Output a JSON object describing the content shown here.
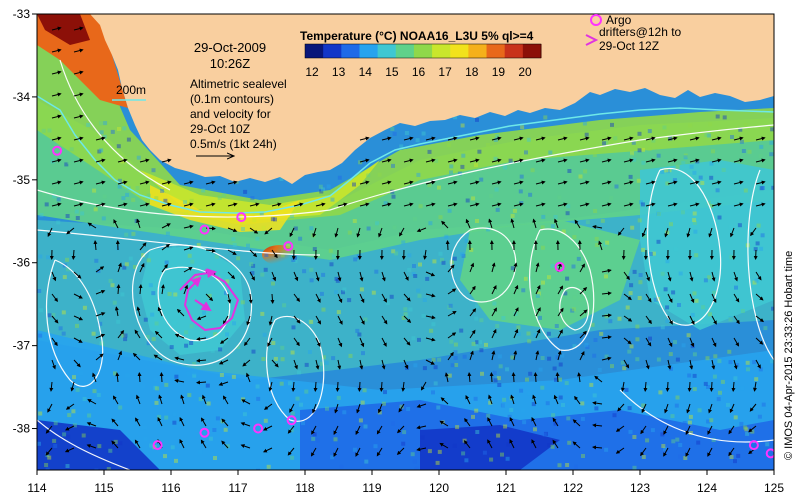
{
  "map": {
    "date": "29-Oct-2009",
    "time": "10:26Z",
    "colorbar": {
      "title": "Temperature (°C) NOAA16_L3U 5% ql>=4",
      "ticks": [
        "12",
        "13",
        "14",
        "15",
        "16",
        "17",
        "18",
        "19",
        "20"
      ],
      "colors": [
        "#08167a",
        "#1236c8",
        "#1f6ae8",
        "#27a3ee",
        "#3fc7d2",
        "#5fd18a",
        "#8fd84a",
        "#c9e62c",
        "#f2e21c",
        "#f5b01a",
        "#e8681a",
        "#c8321a",
        "#8c1008"
      ]
    },
    "altimetry_note": [
      "Altimetric sealevel",
      "(0.1m contours)",
      "and velocity for",
      "29-Oct 10Z",
      "0.5m/s (1kt 24h)"
    ],
    "isobath_label": "200m",
    "argo_label": "Argo",
    "drifter_note": [
      "drifters@12h to",
      "29-Oct 12Z"
    ],
    "credit": "© IMOS 04-Apr-2015 23:33:26 Hobart time",
    "x_ticks": [
      "114",
      "115",
      "116",
      "117",
      "118",
      "119",
      "120",
      "121",
      "122",
      "123",
      "124",
      "125"
    ],
    "y_ticks": [
      "-33",
      "-34",
      "-35",
      "-36",
      "-37",
      "-38"
    ],
    "colors": {
      "land": "#f9cf9f",
      "isobath": "#6ee8e8",
      "contour": "#ffffff",
      "argo": "#ff33ff",
      "drifter": "#e033e0",
      "arrow": "#000000"
    }
  },
  "chart_data": {
    "type": "heatmap",
    "title": "Temperature (°C) NOAA16_L3U 5% ql>=4",
    "xlim": [
      114,
      125
    ],
    "ylim": [
      -38.5,
      -33
    ],
    "argo_floats": [
      {
        "lon": 114.3,
        "lat": -34.65
      },
      {
        "lon": 117.05,
        "lat": -35.45
      },
      {
        "lon": 116.5,
        "lat": -35.6
      },
      {
        "lon": 117.75,
        "lat": -35.8
      },
      {
        "lon": 121.8,
        "lat": -36.05
      },
      {
        "lon": 115.8,
        "lat": -38.2
      },
      {
        "lon": 116.5,
        "lat": -38.05
      },
      {
        "lon": 117.3,
        "lat": -38.0
      },
      {
        "lon": 117.8,
        "lat": -37.9
      },
      {
        "lon": 124.7,
        "lat": -38.2
      },
      {
        "lon": 124.95,
        "lat": -38.3
      }
    ]
  }
}
